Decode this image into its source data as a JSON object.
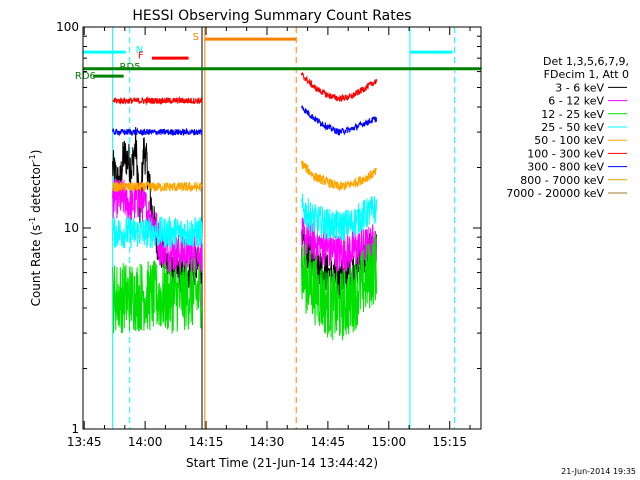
{
  "chart_data": {
    "type": "line",
    "title": "HESSI Observing Summary Count Rates",
    "xlabel": "Start Time (21-Jun-14 13:44:42)",
    "ylabel_main": "Count Rate (s",
    "ylabel_sup1": "-1",
    "ylabel_mid": " detector",
    "ylabel_sup2": "-1",
    "ylabel_end": ")",
    "xlim": [
      0,
      98
    ],
    "ylim": [
      1,
      100
    ],
    "yscale": "log",
    "grid": false,
    "x_tick_labels": [
      "13:45",
      "14:00",
      "14:15",
      "14:30",
      "14:45",
      "15:00",
      "15:15"
    ],
    "x_tick_values": [
      0.3,
      15.3,
      30.3,
      45.3,
      60.3,
      75.3,
      90.3
    ],
    "y_tick_labels": [
      "1",
      "10",
      "100"
    ],
    "y_tick_values": [
      1,
      10,
      100
    ],
    "legend_title": [
      "Det 1,3,5,6,7,9,",
      "FDecim 1, Att 0"
    ],
    "legend_position": "right",
    "timestamp": "21-Jun-2014 19:35",
    "segments": [
      {
        "x0": 7.3,
        "x1": 29.3
      },
      {
        "x0": 53.8,
        "x1": 72.3
      }
    ],
    "series": [
      {
        "name": "3 - 6 keV",
        "color": "#000000",
        "noise": 0.05,
        "seg": [
          [
            [
              7.3,
              20
            ],
            [
              9,
              16
            ],
            [
              10,
              23
            ],
            [
              11,
              22
            ],
            [
              12,
              20
            ],
            [
              13,
              26
            ],
            [
              14,
              12
            ],
            [
              15,
              25
            ],
            [
              16,
              19
            ],
            [
              17,
              12
            ],
            [
              18,
              9
            ],
            [
              19,
              8
            ],
            [
              20,
              7
            ],
            [
              22,
              6
            ],
            [
              25,
              6
            ],
            [
              28,
              6.5
            ],
            [
              29.3,
              6.5
            ]
          ],
          [
            [
              53.8,
              8
            ],
            [
              57,
              7
            ],
            [
              60,
              6
            ],
            [
              63,
              5.5
            ],
            [
              66,
              6
            ],
            [
              69,
              7
            ],
            [
              72.3,
              8
            ]
          ]
        ]
      },
      {
        "name": "6 - 12 keV",
        "color": "#ff00ff",
        "noise": 0.05,
        "seg": [
          [
            [
              7.3,
              14
            ],
            [
              10,
              14
            ],
            [
              12,
              13
            ],
            [
              14,
              14
            ],
            [
              16,
              12
            ],
            [
              18,
              10
            ],
            [
              19,
              8
            ],
            [
              21,
              7.5
            ],
            [
              29.3,
              7.5
            ]
          ],
          [
            [
              53.8,
              9
            ],
            [
              60,
              8
            ],
            [
              63,
              7.5
            ],
            [
              69,
              8
            ],
            [
              72.3,
              8.5
            ]
          ]
        ]
      },
      {
        "name": "12 - 25 keV",
        "color": "#00e000",
        "noise": 0.09,
        "seg": [
          [
            [
              7.3,
              4.5
            ],
            [
              15,
              4.6
            ],
            [
              22,
              4.5
            ],
            [
              29.3,
              4.8
            ]
          ],
          [
            [
              53.8,
              6
            ],
            [
              57,
              5
            ],
            [
              60,
              4.3
            ],
            [
              63,
              4.0
            ],
            [
              66,
              4.4
            ],
            [
              69,
              5.3
            ],
            [
              72.3,
              6.5
            ]
          ]
        ]
      },
      {
        "name": "25 - 50 keV",
        "color": "#00ffff",
        "noise": 0.04,
        "seg": [
          [
            [
              7.3,
              9.5
            ],
            [
              29.3,
              9.5
            ]
          ],
          [
            [
              53.8,
              12.5
            ],
            [
              57,
              11
            ],
            [
              60,
              10.5
            ],
            [
              63,
              10.2
            ],
            [
              66,
              10.5
            ],
            [
              69,
              11.5
            ],
            [
              72.3,
              12.5
            ]
          ]
        ]
      },
      {
        "name": "50 - 100 keV",
        "color": "#ffa500",
        "noise": 0.012,
        "seg": [
          [
            [
              7.3,
              16
            ],
            [
              29.3,
              16
            ]
          ],
          [
            [
              53.8,
              21
            ],
            [
              57,
              18
            ],
            [
              60,
              17
            ],
            [
              63,
              16
            ],
            [
              66,
              16.5
            ],
            [
              69,
              17.5
            ],
            [
              72.3,
              19
            ]
          ]
        ]
      },
      {
        "name": "100 - 300 keV",
        "color": "#ff0000",
        "noise": 0.008,
        "seg": [
          [
            [
              7.3,
              43
            ],
            [
              29.3,
              43
            ]
          ],
          [
            [
              53.8,
              58
            ],
            [
              57,
              50
            ],
            [
              60,
              46
            ],
            [
              63,
              44
            ],
            [
              66,
              45
            ],
            [
              69,
              49
            ],
            [
              72.3,
              54
            ]
          ]
        ]
      },
      {
        "name": "300 - 800 keV",
        "color": "#0000ff",
        "noise": 0.008,
        "seg": [
          [
            [
              7.3,
              30
            ],
            [
              29.3,
              30
            ]
          ],
          [
            [
              53.8,
              40
            ],
            [
              57,
              35
            ],
            [
              60,
              32
            ],
            [
              63,
              30
            ],
            [
              66,
              31
            ],
            [
              69,
              33
            ],
            [
              72.3,
              35
            ]
          ]
        ]
      },
      {
        "name": "800 - 7000 keV",
        "color": "#d8a000",
        "noise": 0,
        "seg": []
      },
      {
        "name": "7000 - 20000 keV",
        "color": "#a0782d",
        "noise": 0,
        "seg": []
      }
    ],
    "vlines": [
      {
        "x": 7.3,
        "color": "#00ffff",
        "dash": false
      },
      {
        "x": 11.5,
        "color": "#00ffff",
        "dash": true
      },
      {
        "x": 29.3,
        "color": "#000000",
        "dash": false
      },
      {
        "x": 30.0,
        "color": "#ff7f00",
        "dash": false
      },
      {
        "x": 52.5,
        "color": "#ff7f00",
        "dash": true
      },
      {
        "x": 80.5,
        "color": "#00ffff",
        "dash": false
      },
      {
        "x": 91.5,
        "color": "#00ffff",
        "dash": true
      }
    ],
    "flags": [
      {
        "name": "N",
        "color": "#00ffff",
        "y": 75,
        "intervals": [
          [
            -6,
            10.5
          ],
          [
            80.5,
            91
          ]
        ],
        "label_x": 13,
        "label_y": 76,
        "label_color": "#00ffff"
      },
      {
        "name": "F",
        "color": "#ff0000",
        "y": 70,
        "intervals": [
          [
            17,
            26
          ]
        ],
        "label_x": 13.5,
        "label_y": 71.5,
        "label_color": "#ff0000"
      },
      {
        "name": "S",
        "color": "#ff7f00",
        "y": 87,
        "intervals": [
          [
            30,
            52.5
          ]
        ],
        "label_x": 27,
        "label_y": 88,
        "label_color": "#ff7f00"
      },
      {
        "name": "RD5",
        "color": "#008000",
        "y": 62,
        "intervals": [
          [
            -6,
            98
          ]
        ],
        "label_x": 9,
        "label_y": 62.5,
        "label_color": "#008000"
      },
      {
        "name": "RD6",
        "color": "#008000",
        "y": 57,
        "intervals": [
          [
            2.5,
            10
          ]
        ],
        "label_x": -2,
        "label_y": 56.5,
        "label_color": "#008000"
      }
    ]
  }
}
